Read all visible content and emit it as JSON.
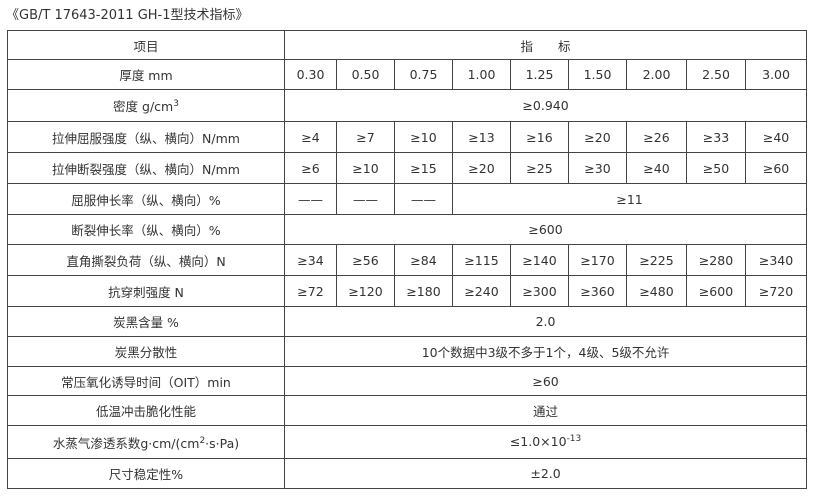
{
  "title": "《GB/T 17643-2011 GH-1型技术指标》",
  "header": {
    "item": "项目",
    "index": "指　　标"
  },
  "rows": [
    {
      "label": "厚度 mm",
      "values": [
        "0.30",
        "0.50",
        "0.75",
        "1.00",
        "1.25",
        "1.50",
        "2.00",
        "2.50",
        "3.00"
      ]
    },
    {
      "label": "密度 g/cm",
      "label_sup": "3",
      "values": [
        "≥0.940"
      ]
    },
    {
      "label": "拉伸屈服强度（纵、横向）N/mm",
      "values": [
        "≥4",
        "≥7",
        "≥10",
        "≥13",
        "≥16",
        "≥20",
        "≥26",
        "≥33",
        "≥40"
      ]
    },
    {
      "label": "拉伸断裂强度（纵、横向）N/mm",
      "values": [
        "≥6",
        "≥10",
        "≥15",
        "≥20",
        "≥25",
        "≥30",
        "≥40",
        "≥50",
        "≥60"
      ]
    },
    {
      "label": "屈服伸长率（纵、横向）%",
      "values": [
        "——",
        "——",
        "——",
        "≥11"
      ]
    },
    {
      "label": "断裂伸长率（纵、横向）%",
      "values": [
        "≥600"
      ]
    },
    {
      "label": "直角撕裂负荷（纵、横向）N",
      "values": [
        "≥34",
        "≥56",
        "≥84",
        "≥115",
        "≥140",
        "≥170",
        "≥225",
        "≥280",
        "≥340"
      ]
    },
    {
      "label": "抗穿刺强度 N",
      "values": [
        "≥72",
        "≥120",
        "≥180",
        "≥240",
        "≥300",
        "≥360",
        "≥480",
        "≥600",
        "≥720"
      ]
    },
    {
      "label": "炭黑含量 %",
      "values": [
        "2.0"
      ]
    },
    {
      "label": "炭黑分散性",
      "values": [
        "10个数据中3级不多于1个，4级、5级不允许"
      ]
    },
    {
      "label": "常压氧化诱导时间（OIT）min",
      "values": [
        "≥60"
      ]
    },
    {
      "label": "低温冲击脆化性能",
      "values": [
        "通过"
      ]
    },
    {
      "label": "水蒸气渗透系数g·cm/(cm",
      "label_sup": "2",
      "label_after": "·s·Pa)",
      "values": [
        "≤1.0×10"
      ],
      "value_sup": "-13"
    },
    {
      "label": "尺寸稳定性%",
      "values": [
        "±2.0"
      ]
    }
  ]
}
